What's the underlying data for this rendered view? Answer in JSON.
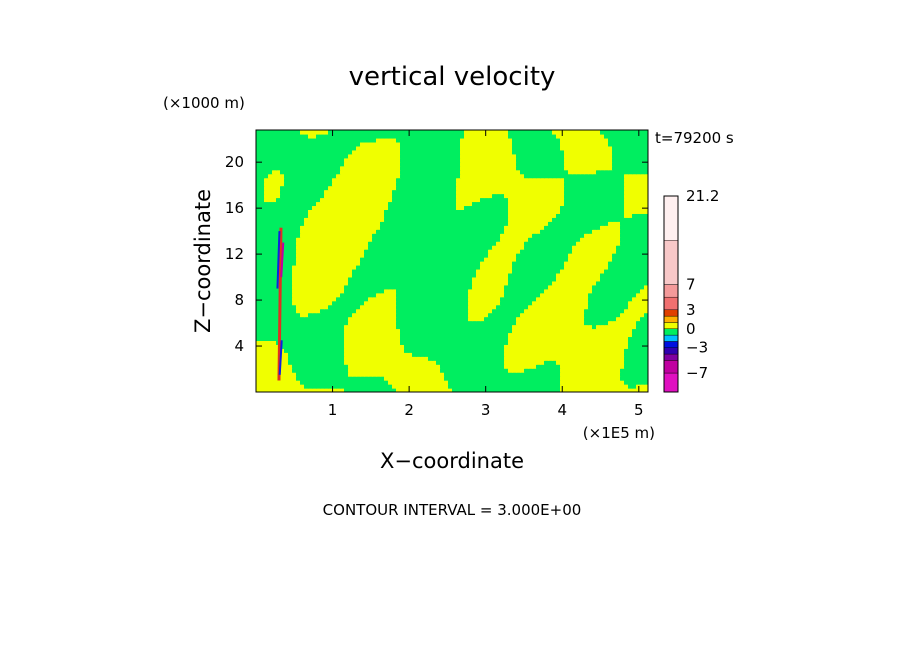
{
  "chart_data": {
    "type": "heatmap",
    "title": "vertical velocity",
    "xlabel": "X−coordinate",
    "ylabel": "Z−coordinate",
    "x_unit": "(×1E5 m)",
    "y_unit": "(×1000 m)",
    "time_label": "t=79200 s",
    "footer": "CONTOUR INTERVAL = 3.000E+00",
    "xlim": [
      0,
      5.12
    ],
    "ylim": [
      0,
      22.8
    ],
    "x_ticks": [
      1,
      2,
      3,
      4,
      5
    ],
    "y_ticks": [
      4,
      8,
      12,
      16,
      20
    ],
    "x_tick_labels": [
      "1",
      "2",
      "3",
      "4",
      "5"
    ],
    "y_tick_labels": [
      "4",
      "8",
      "12",
      "16",
      "20"
    ],
    "colorbar": {
      "labels": [
        {
          "value": 21.2,
          "text": "21.2"
        },
        {
          "value": 7,
          "text": "7"
        },
        {
          "value": 3,
          "text": "3"
        },
        {
          "value": 0,
          "text": "0"
        },
        {
          "value": -3,
          "text": "−3"
        },
        {
          "value": -7,
          "text": "−7"
        }
      ],
      "levels": [
        {
          "low": -10,
          "high": -7,
          "color": "#e010c0"
        },
        {
          "low": -7,
          "high": -5,
          "color": "#c000a0"
        },
        {
          "low": -5,
          "high": -4,
          "color": "#8000a0"
        },
        {
          "low": -4,
          "high": -3,
          "color": "#3000b0"
        },
        {
          "low": -3,
          "high": -2,
          "color": "#0010e0"
        },
        {
          "low": -2,
          "high": -1,
          "color": "#00c0ff"
        },
        {
          "low": -1,
          "high": 0,
          "color": "#00ee60"
        },
        {
          "low": 0,
          "high": 1,
          "color": "#f0ff00"
        },
        {
          "low": 1,
          "high": 2,
          "color": "#ffb000"
        },
        {
          "low": 2,
          "high": 3,
          "color": "#e04000"
        },
        {
          "low": 3,
          "high": 5,
          "color": "#f07070"
        },
        {
          "low": 5,
          "high": 7,
          "color": "#f49a9a"
        },
        {
          "low": 7,
          "high": 14,
          "color": "#f8c8c8"
        },
        {
          "low": 14,
          "high": 21.2,
          "color": "#fff0f0"
        }
      ]
    },
    "field_colors": {
      "positive": "#f0ff00",
      "negative": "#00ee60",
      "strong_up": "#e03020",
      "strong_down": "#1020e0",
      "peak": "#c000a0"
    }
  }
}
